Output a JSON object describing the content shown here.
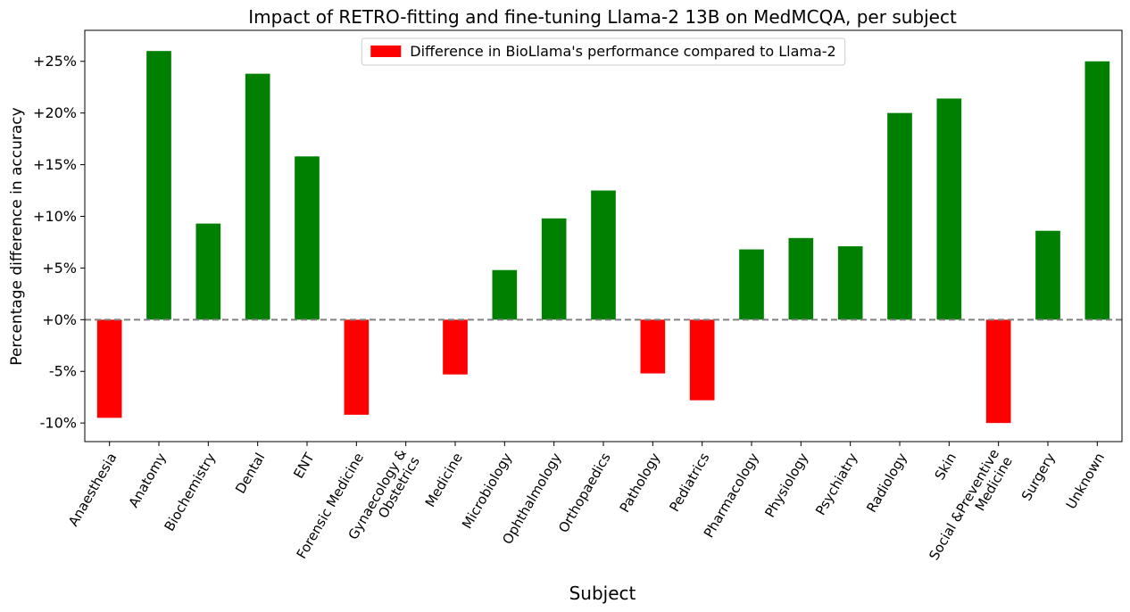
{
  "chart_data": {
    "type": "bar",
    "title": "Impact of RETRO-fitting and fine-tuning Llama-2 13B on MedMCQA, per subject",
    "xlabel": "Subject",
    "ylabel": "Percentage difference in accuracy",
    "ylim": [
      -11.8,
      28
    ],
    "yticks": [
      -10,
      -5,
      0,
      5,
      10,
      15,
      20,
      25
    ],
    "ytick_labels": [
      "-10%",
      "-5%",
      "+0%",
      "+5%",
      "+10%",
      "+15%",
      "+20%",
      "+25%"
    ],
    "categories": [
      [
        "Anaesthesia"
      ],
      [
        "Anatomy"
      ],
      [
        "Biochemistry"
      ],
      [
        "Dental"
      ],
      [
        "ENT"
      ],
      [
        "Forensic Medicine"
      ],
      [
        "Gynaecology &",
        "Obstetrics"
      ],
      [
        "Medicine"
      ],
      [
        "Microbiology"
      ],
      [
        "Ophthalmology"
      ],
      [
        "Orthopaedics"
      ],
      [
        "Pathology"
      ],
      [
        "Pediatrics"
      ],
      [
        "Pharmacology"
      ],
      [
        "Physiology"
      ],
      [
        "Psychiatry"
      ],
      [
        "Radiology"
      ],
      [
        "Skin"
      ],
      [
        "Social &Preventive",
        "Medicine"
      ],
      [
        "Surgery"
      ],
      [
        "Unknown"
      ]
    ],
    "values": [
      -9.5,
      26.0,
      9.3,
      23.8,
      15.8,
      -9.2,
      0,
      -5.3,
      4.8,
      9.8,
      12.5,
      -5.2,
      -7.8,
      6.8,
      7.9,
      7.1,
      20.0,
      21.4,
      -10.0,
      8.6,
      25.0
    ],
    "positive_color": "#008000",
    "negative_color": "#ff0000",
    "reference_line": {
      "y": 0,
      "style": "dashed",
      "color": "#808080"
    },
    "legend": {
      "label": "Difference in BioLlama's performance compared to Llama-2",
      "color": "#ff0000",
      "position": "upper center"
    },
    "grid": false
  }
}
